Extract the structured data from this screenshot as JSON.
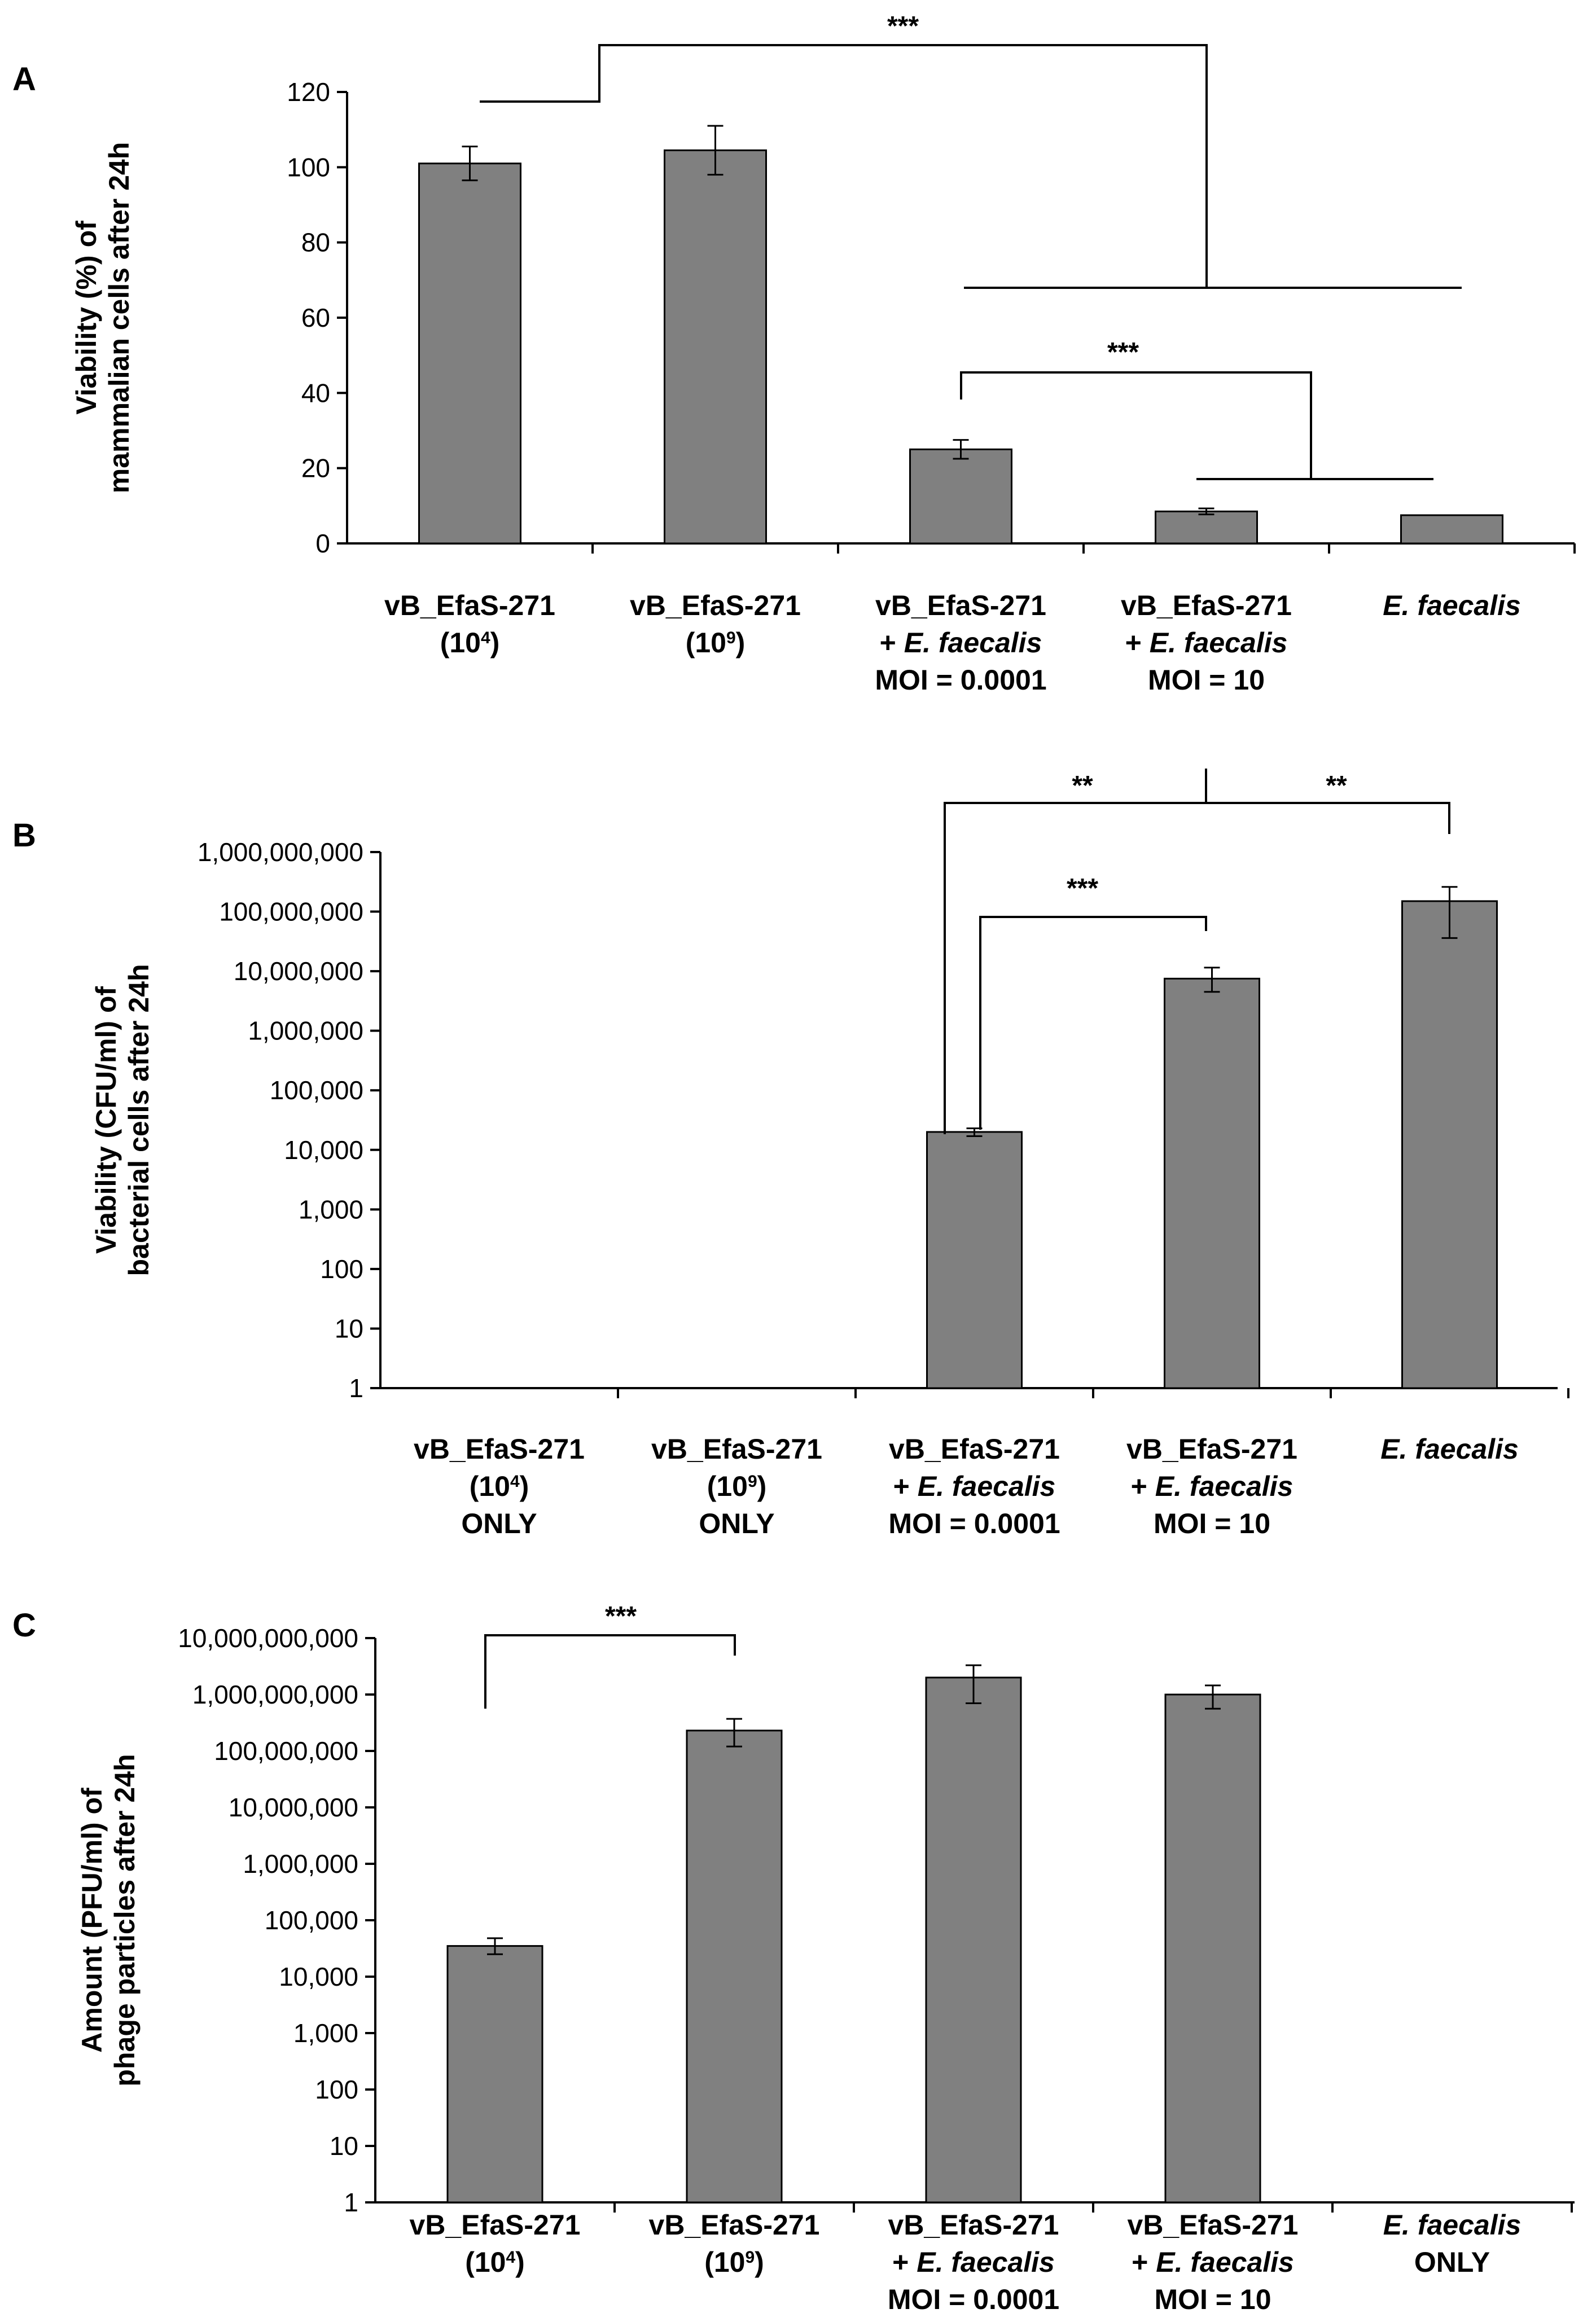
{
  "chart_data": [
    {
      "type": "bar",
      "panel": "A",
      "scale": "linear",
      "ylabel_lines": [
        "Viability (%) of",
        "mammalian cells after 24h"
      ],
      "ylim": [
        0,
        120
      ],
      "yticks": [
        "0",
        "20",
        "40",
        "60",
        "80",
        "100",
        "120"
      ],
      "ytick_values": [
        0,
        20,
        40,
        60,
        80,
        100,
        120
      ],
      "categories": [
        [
          "vB_EfaS-271",
          "(10^4)"
        ],
        [
          "vB_EfaS-271",
          "(10^9)"
        ],
        [
          "vB_EfaS-271",
          "+ E. faecalis",
          "MOI = 0.0001"
        ],
        [
          "vB_EfaS-271",
          "+ E. faecalis",
          "MOI = 10"
        ],
        [
          "E. faecalis"
        ]
      ],
      "values": [
        101,
        104.5,
        25,
        8.5,
        7.5
      ],
      "errors": [
        4.5,
        6.5,
        2.5,
        0.8,
        0
      ],
      "significance": [
        {
          "label": "***",
          "left": "groups 1–2",
          "right": "groups 3–5"
        },
        {
          "label": "***",
          "left": "MOI = 0.0001",
          "right": "MOI = 10 & E. faecalis"
        }
      ]
    },
    {
      "type": "bar",
      "panel": "B",
      "scale": "log",
      "ylabel_lines": [
        "Viability (CFU/ml) of",
        "bacterial cells after 24h"
      ],
      "ylim": [
        1,
        1000000000
      ],
      "yticks": [
        "1",
        "10",
        "100",
        "1,000",
        "10,000",
        "100,000",
        "1,000,000",
        "10,000,000",
        "100,000,000",
        "1,000,000,000"
      ],
      "categories": [
        [
          "vB_EfaS-271",
          "(10^4)",
          "ONLY"
        ],
        [
          "vB_EfaS-271",
          "(10^9)",
          "ONLY"
        ],
        [
          "vB_EfaS-271",
          "+ E. faecalis",
          "MOI = 0.0001"
        ],
        [
          "vB_EfaS-271",
          "+ E. faecalis",
          "MOI = 10"
        ],
        [
          "E. faecalis"
        ]
      ],
      "values": [
        null,
        null,
        20000,
        7500000,
        150000000
      ],
      "error_ranges": [
        null,
        null,
        [
          17000,
          23000
        ],
        [
          4500000,
          11500000
        ],
        [
          36000000,
          260000000
        ]
      ],
      "significance": [
        {
          "label": "***",
          "left": "MOI = 0.0001",
          "right": "MOI = 10"
        },
        {
          "label": "**",
          "left": "MOI = 0.0001",
          "right": "MOI = 10"
        },
        {
          "label": "**",
          "left": "MOI = 10",
          "right": "E. faecalis"
        }
      ]
    },
    {
      "type": "bar",
      "panel": "C",
      "scale": "log",
      "ylabel_lines": [
        "Amount (PFU/ml) of",
        "phage particles after 24h"
      ],
      "ylim": [
        1,
        10000000000
      ],
      "yticks": [
        "1",
        "10",
        "100",
        "1,000",
        "10,000",
        "100,000",
        "1,000,000",
        "10,000,000",
        "100,000,000",
        "1,000,000,000",
        "10,000,000,000"
      ],
      "categories": [
        [
          "vB_EfaS-271",
          "(10^4)"
        ],
        [
          "vB_EfaS-271",
          "(10^9)"
        ],
        [
          "vB_EfaS-271",
          "+ E. faecalis",
          "MOI = 0.0001"
        ],
        [
          "vB_EfaS-271",
          "+ E. faecalis",
          "MOI = 10"
        ],
        [
          "E. faecalis",
          "ONLY"
        ]
      ],
      "values": [
        35000,
        230000000,
        2000000000,
        1000000000,
        null
      ],
      "error_ranges": [
        [
          25000,
          48000
        ],
        [
          120000000,
          370000000
        ],
        [
          700000000,
          3300000000
        ],
        [
          560000000,
          1450000000
        ],
        null
      ],
      "significance": [
        {
          "label": "***",
          "left": "(10^4)",
          "right": "(10^9)"
        }
      ]
    }
  ]
}
